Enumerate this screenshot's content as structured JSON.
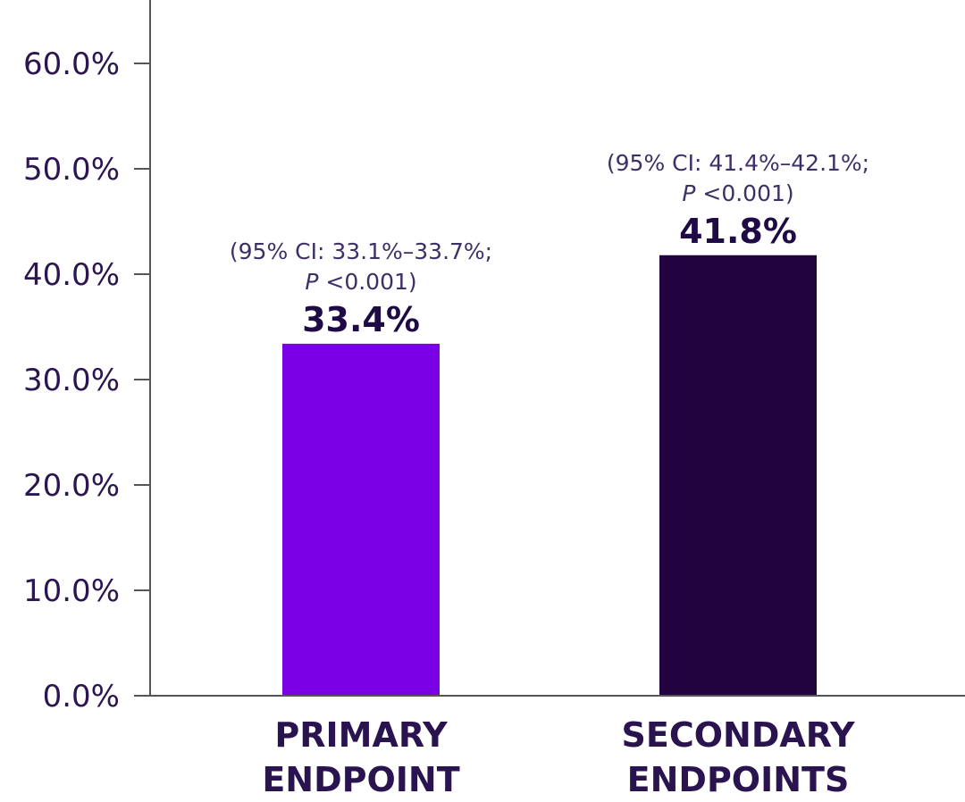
{
  "chart_data": {
    "type": "bar",
    "categories": [
      [
        "PRIMARY",
        "ENDPOINT"
      ],
      [
        "SECONDARY",
        "ENDPOINTS"
      ]
    ],
    "values": [
      33.4,
      41.8
    ],
    "value_labels": [
      "33.4%",
      "41.8%"
    ],
    "annotations": [
      {
        "ci": "(95% CI: 33.1%–33.7%;",
        "p_symbol": "P",
        "p_value": " <0.001)"
      },
      {
        "ci": "(95% CI: 41.4%–42.1%;",
        "p_symbol": "P",
        "p_value": " <0.001)"
      }
    ],
    "bar_colors": [
      "#7a00e6",
      "#22033f"
    ],
    "axis_color": "#555555",
    "y_ticks": [
      0,
      10,
      20,
      30,
      40,
      50,
      60
    ],
    "y_tick_labels": [
      "0.0%",
      "10.0%",
      "20.0%",
      "30.0%",
      "40.0%",
      "50.0%",
      "60.0%"
    ],
    "ylim": [
      0,
      65
    ],
    "grid": false,
    "title": "",
    "xlabel": "",
    "ylabel": ""
  }
}
